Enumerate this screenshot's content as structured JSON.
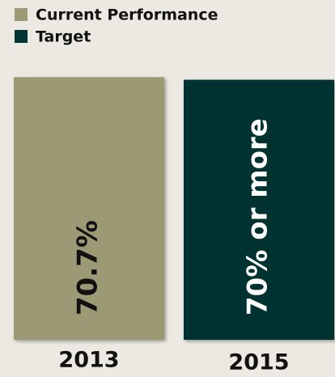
{
  "chart_data": {
    "type": "bar",
    "categories": [
      "2013",
      "2015"
    ],
    "series": [
      {
        "name": "Current Performance",
        "color": "#9b9a74",
        "values": [
          70.7,
          null
        ],
        "value_labels": [
          "70.7%",
          null
        ],
        "label_color": "#111111"
      },
      {
        "name": "Target",
        "color": "#033333",
        "values": [
          null,
          70
        ],
        "value_labels": [
          null,
          "70% or more"
        ],
        "label_color": "#ffffff"
      }
    ],
    "ylim": [
      0,
      71
    ],
    "legend": "top-left"
  }
}
